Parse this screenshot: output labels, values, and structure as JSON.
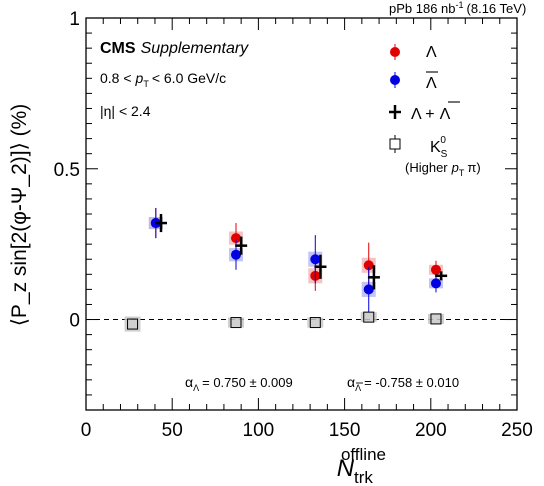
{
  "header": {
    "collision": "pPb 186 nb",
    "collision_exp": "-1",
    "energy": "(8.16 TeV)"
  },
  "labels": {
    "cms": "CMS",
    "supplementary": "Supplementary",
    "pt_cut_pre": "0.8 <",
    "pt_sym": "p",
    "pt_sub": "T",
    "pt_cut_post": "< 6.0 GeV/c",
    "eta_cut": "|η| < 2.4",
    "alpha_sym": "α",
    "alpha_lambda_sub": "Λ",
    "alpha_lambda_val": "= 0.750 ± 0.009",
    "alpha_antilambda_sub": "Λ",
    "alpha_antilambda_val": "= -0.758 ± 0.010"
  },
  "legend": {
    "lambda": "Λ",
    "antilambda": "Λ",
    "combined_a": "Λ +",
    "combined_b": "Λ",
    "ks0": "K",
    "ks0_sub": "S",
    "ks0_sup": "0",
    "higher_pt_a": "(Higher",
    "higher_pt_p": "p",
    "higher_pt_sub": "T",
    "higher_pt_b": "π)"
  },
  "axes": {
    "x_title": "N",
    "x_title_sub": "trk",
    "x_title_sup": "offline",
    "y_title": "⟨P_z sin[2(φ-Ψ_2)]⟩ (%)"
  },
  "chart_data": {
    "type": "scatter",
    "xlim": [
      0,
      250
    ],
    "ylim": [
      -0.3,
      1.0
    ],
    "x_ticks": [
      0,
      50,
      100,
      150,
      200,
      250
    ],
    "y_ticks": [
      0,
      0.5,
      1
    ],
    "y_tick_labels": [
      "0",
      "0.5",
      "1"
    ],
    "reference_line_y": 0,
    "series": [
      {
        "name": "Λ",
        "color": "#e00000",
        "marker": "filled-circle",
        "x": [
          40.5,
          87,
          133,
          164,
          203
        ],
        "y": [
          0.32,
          0.27,
          0.145,
          0.18,
          0.165
        ],
        "err": [
          0.05,
          0.05,
          0.05,
          0.075,
          0.03
        ],
        "syst": [
          0.02,
          0.022,
          0.025,
          0.025,
          0.012
        ]
      },
      {
        "name": "Λ̄",
        "color": "#0000e0",
        "marker": "filled-circle",
        "x": [
          40.5,
          87,
          133,
          164,
          203
        ],
        "y": [
          0.32,
          0.215,
          0.2,
          0.1,
          0.12
        ],
        "err": [
          0.05,
          0.05,
          0.08,
          0.075,
          0.03
        ],
        "syst": [
          0.02,
          0.022,
          0.025,
          0.025,
          0.012
        ]
      },
      {
        "name": "Λ + Λ̄",
        "color": "#000000",
        "marker": "cross",
        "x": [
          43.5,
          90,
          136,
          167,
          206
        ],
        "y": [
          0.32,
          0.245,
          0.175,
          0.14,
          0.145
        ],
        "err": [
          0.03,
          0.03,
          0.04,
          0.04,
          0.015
        ]
      },
      {
        "name": "K_S^0",
        "color": "#000000",
        "marker": "open-square",
        "x": [
          27,
          87,
          133,
          164,
          203
        ],
        "y": [
          -0.015,
          -0.01,
          -0.01,
          0.008,
          0.002
        ],
        "syst": [
          0.025,
          0.012,
          0.012,
          0.015,
          0.012
        ]
      }
    ]
  }
}
